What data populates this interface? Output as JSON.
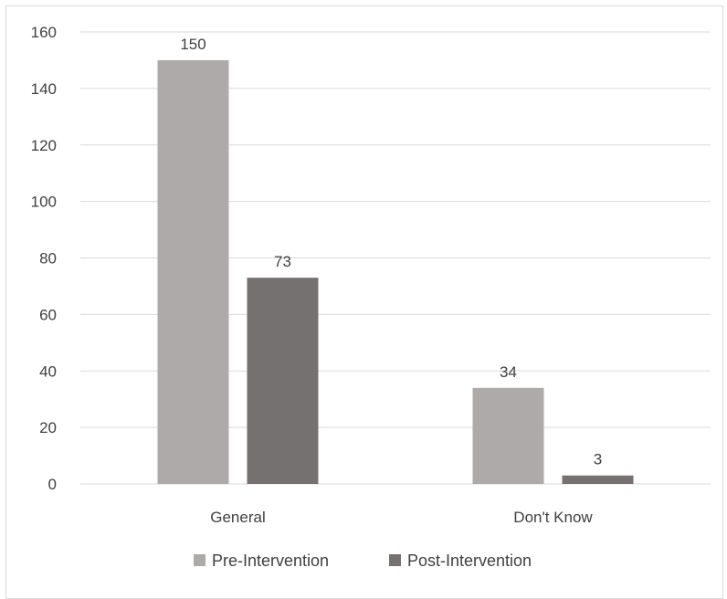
{
  "chart_data": {
    "type": "bar",
    "categories": [
      "General",
      "Don't Know"
    ],
    "series": [
      {
        "name": "Pre-Intervention",
        "values": [
          150,
          34
        ],
        "color": "#aeaaaa"
      },
      {
        "name": "Post-Intervention",
        "values": [
          73,
          3
        ],
        "color": "#767171"
      }
    ],
    "ylim": [
      0,
      160
    ],
    "yticks": [
      "0",
      "20",
      "40",
      "60",
      "80",
      "100",
      "120",
      "140",
      "160"
    ],
    "grid": true,
    "legend": "bottom",
    "data_labels": true
  }
}
